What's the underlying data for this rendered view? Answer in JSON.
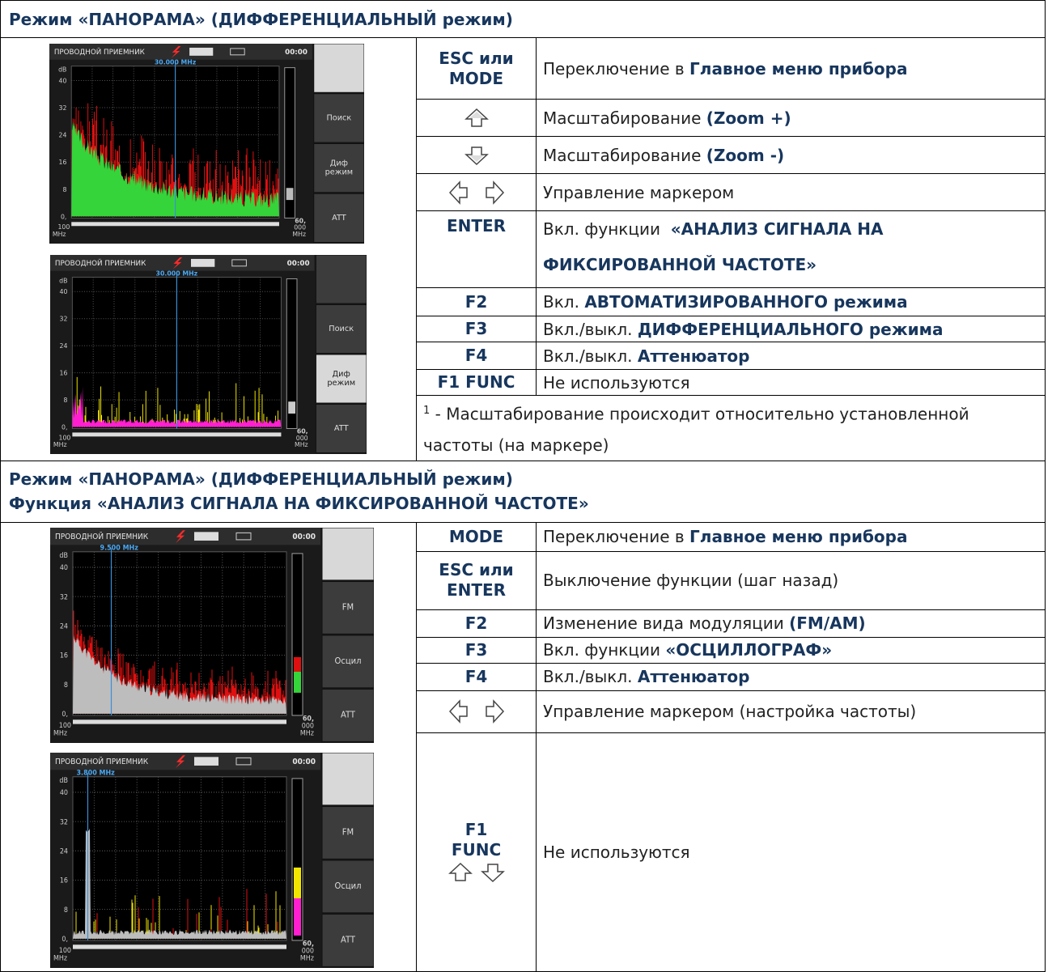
{
  "sections": [
    {
      "title": [
        "Режим «ПАНОРАМА» (ДИФФЕРЕНЦИАЛЬНЫЙ режим)"
      ],
      "rows": [
        {
          "key": [
            "ESC или",
            "MODE"
          ],
          "text": "Переключение в",
          "bold": "Главное меню прибора"
        },
        {
          "text": "Масштабирование",
          "bold": "(Zoom +)"
        },
        {
          "text": "Масштабирование",
          "bold": "(Zoom -)"
        },
        {
          "text": "Управление маркером"
        },
        {
          "key": [
            "ENTER"
          ],
          "text": "Вкл. функции",
          "bold": "«АНАЛИЗ СИГНАЛА НА ФИКСИРОВАННОЙ ЧАСТОТЕ»"
        },
        {
          "key": [
            "F2"
          ],
          "text": "Вкл.",
          "bold": "АВТОМАТИЗИРОВАННОГО режима"
        },
        {
          "key": [
            "F3"
          ],
          "text": "Вкл./выкл.",
          "bold": "ДИФФЕРЕНЦИАЛЬНОГО режима"
        },
        {
          "key": [
            "F4"
          ],
          "text": "Вкл./выкл.",
          "bold": "Аттенюатор"
        },
        {
          "key": [
            "F1 FUNC"
          ],
          "text": "Не используются"
        }
      ],
      "note": {
        "mark": "1",
        "text": "- Масштабирование происходит относительно установленной частоты (на маркере)"
      },
      "screens": [
        {
          "header": "ПРОВОДНОЙ ПРИЕМНИК",
          "time": "00:00",
          "marker": "30.000 MHz",
          "y_unit": "dB",
          "y_labels": [
            "40",
            "32",
            "24",
            "16",
            "8",
            "0,"
          ],
          "x_start": [
            "100",
            "MHz"
          ],
          "x_end": [
            "60,",
            "000",
            "MHz"
          ],
          "buttons": [
            [
              "Поиск"
            ],
            [
              "Диф",
              "режим"
            ],
            [
              "ATT"
            ]
          ]
        },
        {
          "header": "ПРОВОДНОЙ ПРИЕМНИК",
          "time": "00:00",
          "marker": "30.000 MHz",
          "y_unit": "dB",
          "y_labels": [
            "40",
            "32",
            "24",
            "16",
            "8",
            "0,"
          ],
          "x_start": [
            "100",
            "MHz"
          ],
          "x_end": [
            "60,",
            "000",
            "MHz"
          ],
          "buttons": [
            [
              "Поиск"
            ],
            [
              "Диф",
              "режим"
            ],
            [
              "ATT"
            ]
          ]
        }
      ]
    },
    {
      "title": [
        "Режим «ПАНОРАМА» (ДИФФЕРЕНЦИАЛЬНЫЙ режим)",
        "Функция «АНАЛИЗ СИГНАЛА НА ФИКСИРОВАННОЙ ЧАСТОТЕ»"
      ],
      "rows": [
        {
          "key": [
            "MODE"
          ],
          "text": "Переключение в",
          "bold": "Главное меню прибора"
        },
        {
          "key": [
            "ESC или",
            "ENTER"
          ],
          "text": "Выключение функции (шаг назад)"
        },
        {
          "key": [
            "F2"
          ],
          "text": "Изменение вида модуляции",
          "bold": "(FM/AM)"
        },
        {
          "key": [
            "F3"
          ],
          "text": "Вкл. функции",
          "bold": "«ОСЦИЛЛОГРАФ»"
        },
        {
          "key": [
            "F4"
          ],
          "text": "Вкл./выкл.",
          "bold": "Аттенюатор"
        },
        {
          "text": "Управление маркером (настройка частоты)"
        },
        {
          "key": [
            "F1",
            "FUNC"
          ],
          "text": "Не используются"
        }
      ],
      "screens": [
        {
          "header": "ПРОВОДНОЙ ПРИЕМНИК",
          "time": "00:00",
          "marker": "9.500 MHz",
          "y_unit": "dB",
          "y_labels": [
            "40",
            "32",
            "24",
            "16",
            "8",
            "0,"
          ],
          "x_start": [
            "100",
            "MHz"
          ],
          "x_end": [
            "60,",
            "000",
            "MHz"
          ],
          "buttons": [
            [
              "FM"
            ],
            [
              "Осцил"
            ],
            [
              "ATT"
            ]
          ]
        },
        {
          "header": "ПРОВОДНОЙ ПРИЕМНИК",
          "time": "00:00",
          "marker": "3.800 MHz",
          "y_unit": "dB",
          "y_labels": [
            "40",
            "32",
            "24",
            "16",
            "8",
            "0,"
          ],
          "x_start": [
            "100",
            "MHz"
          ],
          "x_end": [
            "60,",
            "000",
            "MHz"
          ],
          "buttons": [
            [
              "FM"
            ],
            [
              "Осцил"
            ],
            [
              "ATT"
            ]
          ]
        }
      ]
    }
  ]
}
